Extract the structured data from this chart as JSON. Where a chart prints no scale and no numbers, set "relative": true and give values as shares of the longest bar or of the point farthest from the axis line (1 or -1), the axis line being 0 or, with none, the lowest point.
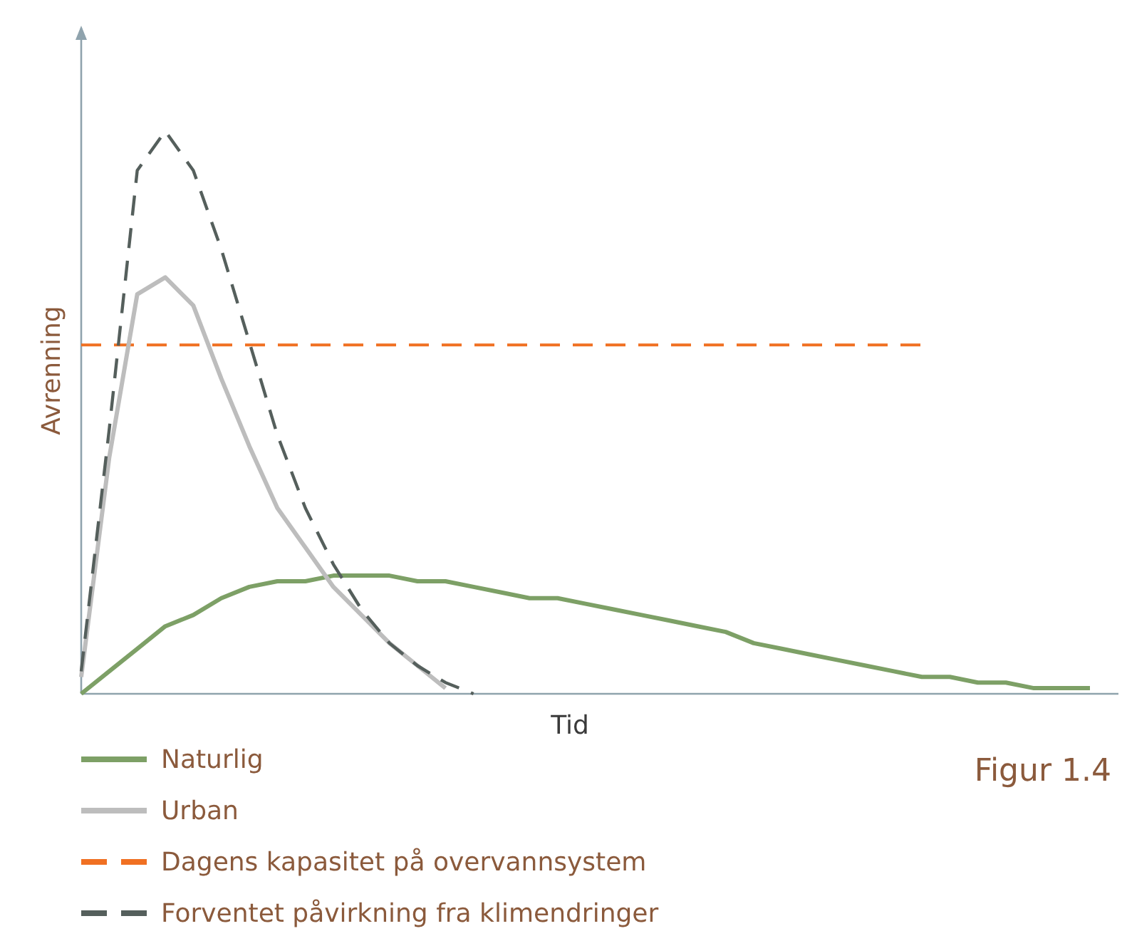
{
  "chart_data": {
    "type": "line",
    "relative": true,
    "xlabel": "Tid",
    "ylabel": "Avrenning",
    "annotations": [
      "Figur 1.4"
    ],
    "legend": "bottom left",
    "categories": [
      null,
      null,
      null,
      null,
      null,
      null,
      null,
      null,
      null,
      null,
      null,
      null,
      null,
      null,
      null,
      null,
      null,
      null,
      null,
      null,
      null,
      null,
      null,
      null,
      null,
      null,
      null,
      null,
      null,
      null,
      null,
      null,
      null,
      null,
      null,
      null,
      null
    ],
    "series": [
      {
        "name": "Naturlig",
        "color": "#7da066",
        "values": [
          0,
          0.04,
          0.08,
          0.12,
          0.14,
          0.17,
          0.19,
          0.2,
          0.2,
          0.21,
          0.21,
          0.21,
          0.2,
          0.2,
          0.19,
          0.18,
          0.17,
          0.17,
          0.16,
          0.15,
          0.14,
          0.13,
          0.12,
          0.11,
          0.09,
          0.08,
          0.07,
          0.06,
          0.05,
          0.04,
          0.03,
          0.03,
          0.02,
          0.02,
          0.01,
          0.01,
          0.01
        ]
      },
      {
        "name": "Urban",
        "color": "#bdbdbd",
        "values": [
          0.03,
          0.42,
          0.71,
          0.74,
          0.69,
          0.56,
          0.44,
          0.33,
          0.26,
          0.19,
          0.14,
          0.09,
          0.05,
          0.01,
          null,
          null,
          null,
          null,
          null,
          null,
          null,
          null,
          null,
          null,
          null,
          null,
          null,
          null,
          null,
          null,
          null,
          null,
          null,
          null,
          null,
          null,
          null
        ]
      },
      {
        "name": "Forventet påvirkning fra klimendringer",
        "color": "#555f5c",
        "line_style": "dashed",
        "values": [
          0.04,
          0.47,
          0.93,
          1,
          0.93,
          0.79,
          0.625,
          0.46,
          0.33,
          0.23,
          0.15,
          0.09,
          0.05,
          0.02,
          0,
          null,
          null,
          null,
          null,
          null,
          null,
          null,
          null,
          null,
          null,
          null,
          null,
          null,
          null,
          null,
          null,
          null,
          null,
          null,
          null,
          null,
          null
        ]
      }
    ],
    "ref_lines": [
      {
        "axis": "y",
        "value": 0.62,
        "label": "Dagens kapasitet på overvannsystem",
        "color": "#f07022",
        "line_style": "dashed"
      }
    ]
  }
}
